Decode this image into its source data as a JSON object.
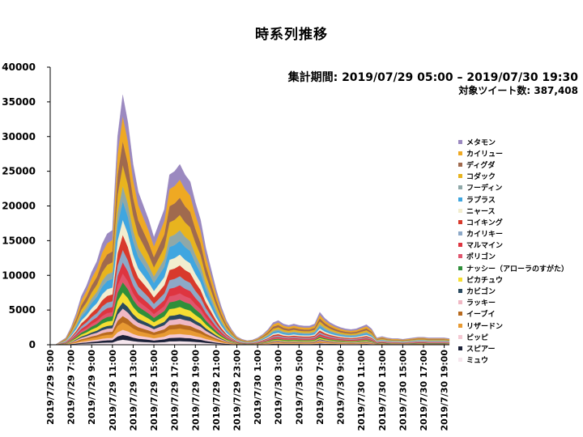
{
  "colors": {
    "axis": "#000000",
    "text": "#000000",
    "background": "#ffffff"
  },
  "chart_data": {
    "type": "area",
    "stacked": true,
    "title": "時系列推移",
    "info": {
      "period_label": "集計期間:",
      "period_value": "2019/07/29 05:00 – 2019/07/30 19:30",
      "count_label": "対象ツイート数:",
      "count_value": "387,408"
    },
    "xlabel": "",
    "ylabel": "",
    "ylim": [
      0,
      40000
    ],
    "yticks": [
      "0",
      "5000",
      "10000",
      "15000",
      "20000",
      "25000",
      "30000",
      "35000",
      "40000"
    ],
    "x": [
      "05:00",
      "05:30",
      "06:00",
      "06:30",
      "07:00",
      "07:30",
      "08:00",
      "08:30",
      "09:00",
      "09:30",
      "10:00",
      "10:30",
      "11:00",
      "11:30",
      "12:00",
      "12:30",
      "13:00",
      "13:30",
      "14:00",
      "14:30",
      "15:00",
      "15:30",
      "16:00",
      "16:30",
      "17:00",
      "17:30",
      "18:00",
      "18:30",
      "19:00",
      "19:30",
      "20:00",
      "20:30",
      "21:00",
      "21:30",
      "22:00",
      "22:30",
      "23:00",
      "23:30",
      "00:00",
      "00:30",
      "01:00",
      "01:30",
      "02:00",
      "02:30",
      "03:00",
      "03:30",
      "04:00",
      "04:30",
      "05:00",
      "05:30",
      "06:00",
      "06:30",
      "07:00",
      "07:30",
      "08:00",
      "08:30",
      "09:00",
      "09:30",
      "10:00",
      "10:30",
      "11:00",
      "11:30",
      "12:00",
      "12:30",
      "13:00",
      "13:30",
      "14:00",
      "14:30",
      "15:00",
      "15:30",
      "16:00",
      "16:30",
      "17:00",
      "17:30",
      "18:00",
      "18:30",
      "19:00",
      "19:30"
    ],
    "xtick_labels": [
      "2019/7/29 5:00",
      "2019/7/29 7:00",
      "2019/7/29 9:00",
      "2019/7/29 11:00",
      "2019/7/29 13:00",
      "2019/7/29 15:00",
      "2019/7/29 17:00",
      "2019/7/29 19:00",
      "2019/7/29 21:00",
      "2019/7/29 23:00",
      "2019/7/30 1:00",
      "2019/7/30 3:00",
      "2019/7/30 5:00",
      "2019/7/30 7:00",
      "2019/7/30 9:00",
      "2019/7/30 11:00",
      "2019/7/30 13:00",
      "2019/7/30 15:00",
      "2019/7/30 17:00",
      "2019/7/30 19:00"
    ],
    "totals": [
      0,
      0,
      500,
      1000,
      2500,
      4500,
      7000,
      8500,
      10500,
      12000,
      14500,
      16000,
      16500,
      30000,
      36000,
      32000,
      26000,
      22000,
      20000,
      18000,
      15500,
      17500,
      19500,
      24500,
      25000,
      26000,
      24500,
      23500,
      20500,
      18000,
      14000,
      11000,
      8000,
      5500,
      3500,
      2200,
      1200,
      800,
      600,
      700,
      1000,
      1500,
      2200,
      3200,
      3500,
      3000,
      2800,
      3000,
      2800,
      2700,
      2700,
      3000,
      4700,
      3800,
      3200,
      2800,
      2500,
      2300,
      2200,
      2300,
      2600,
      2900,
      2300,
      1000,
      1200,
      1000,
      900,
      900,
      800,
      900,
      1000,
      1100,
      1100,
      1000,
      1000,
      1000,
      1000,
      900
    ],
    "series": [
      {
        "name": "メタモン",
        "color": "#9B89C0",
        "share": 0.085
      },
      {
        "name": "カイリュー",
        "color": "#EFA923",
        "share": 0.1
      },
      {
        "name": "ディグダ",
        "color": "#A06A4E",
        "share": 0.095
      },
      {
        "name": "コダック",
        "color": "#E8B41E",
        "share": 0.085
      },
      {
        "name": "フーディン",
        "color": "#8FA8A8",
        "share": 0.06
      },
      {
        "name": "ラプラス",
        "color": "#3FA6E0",
        "share": 0.075
      },
      {
        "name": "ニャース",
        "color": "#F2EDCF",
        "share": 0.06
      },
      {
        "name": "コイキング",
        "color": "#D83A2C",
        "share": 0.06
      },
      {
        "name": "カイリキー",
        "color": "#8DA9C8",
        "share": 0.05
      },
      {
        "name": "マルマイン",
        "color": "#DE3540",
        "share": 0.045
      },
      {
        "name": "ポリゴン",
        "color": "#E0556D",
        "share": 0.035
      },
      {
        "name": "ナッシー（アローラのすがた）",
        "color": "#2F8F3A",
        "share": 0.04
      },
      {
        "name": "ピカチュウ",
        "color": "#F6DE32",
        "share": 0.04
      },
      {
        "name": "カビゴン",
        "color": "#2A4A60",
        "share": 0.025
      },
      {
        "name": "ラッキー",
        "color": "#F0B8C4",
        "share": 0.03
      },
      {
        "name": "イーブイ",
        "color": "#B86A1E",
        "share": 0.025
      },
      {
        "name": "リザードン",
        "color": "#E89A32",
        "share": 0.03
      },
      {
        "name": "ピッピ",
        "color": "#F4C9D3",
        "share": 0.02
      },
      {
        "name": "スピアー",
        "color": "#1C2138",
        "share": 0.02
      },
      {
        "name": "ミュウ",
        "color": "#F6E7EE",
        "share": 0.02
      }
    ]
  }
}
